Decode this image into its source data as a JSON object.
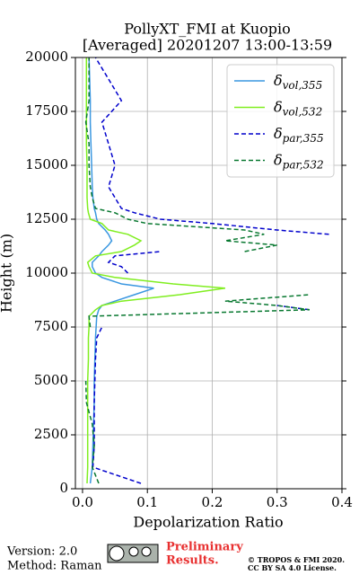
{
  "chart_data": {
    "type": "line",
    "title": "PollyXT_FMI at Kuopio",
    "subtitle": "[Averaged] 20201207 13:00-13:59",
    "xlabel": "Depolarization Ratio",
    "ylabel": "Height (m)",
    "xlim": [
      -0.011,
      0.4
    ],
    "xticks": [
      {
        "value": 0,
        "label": "0.0"
      },
      0.1,
      0.2,
      0.3,
      0.4
    ],
    "ylim": [
      0,
      20000
    ],
    "yticks": [
      0,
      2500,
      5000,
      7500,
      10000,
      12500,
      15000,
      17500,
      20000
    ],
    "grid": true,
    "legend": "upper right",
    "heights": [
      250,
      1000,
      2000,
      3000,
      4000,
      5000,
      6000,
      7000,
      7500,
      8000,
      8300,
      8500,
      8700,
      9000,
      9300,
      9500,
      9800,
      10000,
      10300,
      10500,
      10800,
      11000,
      11300,
      11500,
      11800,
      12000,
      12300,
      12500,
      12800,
      13000,
      13500,
      14000,
      15000,
      16000,
      17000,
      18000,
      19000,
      20000
    ],
    "series": [
      {
        "name": "δvol,355",
        "color": "#3a97e0",
        "dash": false,
        "values": [
          0.012,
          0.015,
          0.016,
          0.017,
          0.018,
          0.018,
          0.019,
          0.02,
          0.021,
          0.022,
          0.025,
          0.03,
          0.05,
          0.08,
          0.11,
          0.06,
          0.03,
          0.02,
          0.015,
          0.015,
          0.025,
          0.03,
          0.04,
          0.045,
          0.04,
          0.035,
          0.025,
          0.022,
          0.02,
          0.018,
          0.016,
          0.015,
          0.014,
          0.013,
          0.012,
          0.012,
          0.011,
          0.01
        ]
      },
      {
        "name": "δvol,532",
        "color": "#80ee20",
        "dash": false,
        "values": [
          0.007,
          0.008,
          0.008,
          0.008,
          0.008,
          0.008,
          0.009,
          0.009,
          0.01,
          0.01,
          0.02,
          0.03,
          0.06,
          0.15,
          0.22,
          0.14,
          0.05,
          0.015,
          0.01,
          0.008,
          0.02,
          0.06,
          0.08,
          0.09,
          0.07,
          0.04,
          0.03,
          0.012,
          0.009,
          0.008,
          0.007,
          0.007,
          0.007,
          0.006,
          0.006,
          0.006,
          0.006,
          0.006
        ]
      },
      {
        "name": "δpar,355",
        "color": "#0000cc",
        "dash": true,
        "values": [
          0.09,
          0.016,
          0.018,
          0.018,
          0.018,
          0.019,
          0.02,
          0.022,
          0.03,
          null,
          0.35,
          0.3,
          null,
          null,
          null,
          null,
          null,
          0.07,
          0.06,
          0.04,
          0.05,
          0.12,
          null,
          null,
          0.38,
          0.3,
          0.2,
          0.12,
          0.08,
          0.06,
          0.05,
          0.04,
          0.05,
          0.04,
          0.03,
          0.06,
          0.04,
          0.02
        ]
      },
      {
        "name": "δpar,532",
        "color": "#087830",
        "dash": true,
        "values": [
          0.025,
          0.015,
          0.018,
          0.015,
          0.006,
          0.005,
          null,
          null,
          0.012,
          0.01,
          0.35,
          0.3,
          0.22,
          0.35,
          null,
          null,
          null,
          null,
          null,
          null,
          null,
          0.25,
          0.3,
          0.22,
          0.28,
          0.25,
          0.1,
          0.07,
          0.05,
          0.02,
          0.015,
          0.012,
          0.01,
          0.01,
          0.005,
          0.01,
          0.01,
          0.01
        ]
      }
    ],
    "footer": {
      "version": "Version: 2.0",
      "method": "Method: Raman",
      "preliminary": "Preliminary Results.",
      "copyright": "© TROPOS & FMI 2020.",
      "license": "CC BY SA 4.0 License."
    }
  }
}
